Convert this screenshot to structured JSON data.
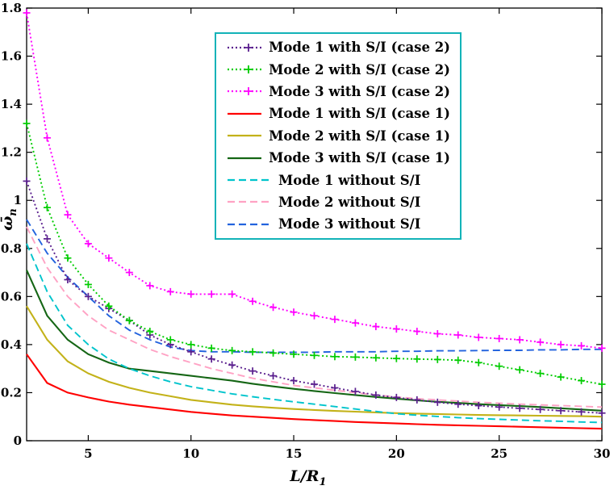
{
  "chart_data": {
    "type": "line",
    "title": "",
    "xlabel_main": "L/R",
    "xlabel_sub": "1",
    "ylabel_main": "ω̄",
    "ylabel_sub": "n",
    "xlim": [
      2,
      30
    ],
    "ylim": [
      0,
      1.8
    ],
    "grid": false,
    "x_ticks": [
      5,
      10,
      15,
      20,
      25,
      30
    ],
    "x_tick_labels": [
      "5",
      "10",
      "15",
      "20",
      "25",
      "30"
    ],
    "y_ticks": [
      0,
      0.2,
      0.4,
      0.6,
      0.8,
      1.0,
      1.2,
      1.4,
      1.6,
      1.8
    ],
    "y_tick_labels": [
      "0",
      "0.2",
      "0.4",
      "0.6",
      "0.8",
      "1",
      "1.2",
      "1.4",
      "1.6",
      "1.8"
    ],
    "x": [
      2,
      3,
      4,
      5,
      6,
      7,
      8,
      9,
      10,
      11,
      12,
      13,
      14,
      15,
      16,
      17,
      18,
      19,
      20,
      21,
      22,
      23,
      24,
      25,
      26,
      27,
      28,
      29,
      30
    ],
    "legend": {
      "position": "upper-center",
      "border_color": "#12b3b8"
    },
    "series": [
      {
        "name": "Mode 1 with S/I (case 2)",
        "color": "#5a1f8e",
        "line": "dotted",
        "marker": "plus",
        "values": [
          1.08,
          0.84,
          0.67,
          0.6,
          0.55,
          0.5,
          0.44,
          0.4,
          0.37,
          0.34,
          0.315,
          0.29,
          0.27,
          0.25,
          0.235,
          0.22,
          0.205,
          0.19,
          0.18,
          0.17,
          0.16,
          0.152,
          0.146,
          0.14,
          0.135,
          0.13,
          0.125,
          0.12,
          0.115
        ]
      },
      {
        "name": "Mode 2 with S/I (case 2)",
        "color": "#00cc00",
        "line": "dotted",
        "marker": "plus",
        "values": [
          1.32,
          0.97,
          0.76,
          0.65,
          0.56,
          0.5,
          0.455,
          0.42,
          0.4,
          0.385,
          0.375,
          0.37,
          0.365,
          0.36,
          0.355,
          0.35,
          0.348,
          0.345,
          0.342,
          0.34,
          0.338,
          0.335,
          0.325,
          0.31,
          0.295,
          0.28,
          0.265,
          0.25,
          0.235
        ]
      },
      {
        "name": "Mode 3 with S/I (case 2)",
        "color": "#ff00ff",
        "line": "dotted",
        "marker": "plus",
        "values": [
          1.78,
          1.26,
          0.94,
          0.82,
          0.76,
          0.7,
          0.645,
          0.62,
          0.61,
          0.61,
          0.61,
          0.58,
          0.555,
          0.535,
          0.52,
          0.505,
          0.49,
          0.475,
          0.465,
          0.455,
          0.445,
          0.44,
          0.43,
          0.425,
          0.42,
          0.41,
          0.4,
          0.395,
          0.385
        ]
      },
      {
        "name": "Mode 1 with S/I (case 1)",
        "color": "#ff0000",
        "line": "solid",
        "marker": "none",
        "values": [
          0.36,
          0.24,
          0.2,
          0.18,
          0.163,
          0.15,
          0.14,
          0.13,
          0.12,
          0.112,
          0.105,
          0.1,
          0.095,
          0.09,
          0.086,
          0.082,
          0.078,
          0.075,
          0.072,
          0.069,
          0.066,
          0.064,
          0.062,
          0.06,
          0.058,
          0.056,
          0.054,
          0.052,
          0.05
        ]
      },
      {
        "name": "Mode 2 with S/I (case 1)",
        "color": "#c3b219",
        "line": "solid",
        "marker": "none",
        "values": [
          0.56,
          0.42,
          0.33,
          0.28,
          0.245,
          0.22,
          0.2,
          0.185,
          0.17,
          0.16,
          0.15,
          0.143,
          0.137,
          0.132,
          0.128,
          0.124,
          0.121,
          0.118,
          0.115,
          0.113,
          0.111,
          0.109,
          0.107,
          0.106,
          0.105,
          0.104,
          0.103,
          0.102,
          0.1
        ]
      },
      {
        "name": "Mode 3 with S/I (case 1)",
        "color": "#156615",
        "line": "solid",
        "marker": "none",
        "values": [
          0.71,
          0.52,
          0.42,
          0.36,
          0.325,
          0.3,
          0.29,
          0.28,
          0.27,
          0.26,
          0.25,
          0.237,
          0.226,
          0.216,
          0.207,
          0.198,
          0.19,
          0.182,
          0.175,
          0.168,
          0.162,
          0.157,
          0.152,
          0.148,
          0.144,
          0.14,
          0.135,
          0.13,
          0.125
        ]
      },
      {
        "name": "Mode 1 without S/I",
        "color": "#00c4cc",
        "line": "dashed",
        "marker": "none",
        "values": [
          0.82,
          0.62,
          0.48,
          0.4,
          0.34,
          0.3,
          0.27,
          0.245,
          0.225,
          0.21,
          0.195,
          0.183,
          0.172,
          0.162,
          0.152,
          0.142,
          0.132,
          0.122,
          0.112,
          0.106,
          0.101,
          0.096,
          0.092,
          0.089,
          0.086,
          0.083,
          0.081,
          0.078,
          0.076
        ]
      },
      {
        "name": "Mode 2 without S/I",
        "color": "#ffa2c4",
        "line": "dashed",
        "marker": "none",
        "values": [
          0.89,
          0.72,
          0.6,
          0.52,
          0.46,
          0.42,
          0.38,
          0.35,
          0.325,
          0.3,
          0.28,
          0.26,
          0.245,
          0.23,
          0.22,
          0.21,
          0.2,
          0.19,
          0.182,
          0.175,
          0.17,
          0.165,
          0.16,
          0.156,
          0.152,
          0.149,
          0.146,
          0.143,
          0.14
        ]
      },
      {
        "name": "Mode 3 without S/I",
        "color": "#2363de",
        "line": "dashed",
        "marker": "none",
        "values": [
          0.92,
          0.78,
          0.68,
          0.6,
          0.52,
          0.46,
          0.42,
          0.39,
          0.375,
          0.37,
          0.37,
          0.368,
          0.368,
          0.368,
          0.368,
          0.37,
          0.37,
          0.37,
          0.372,
          0.372,
          0.374,
          0.374,
          0.375,
          0.376,
          0.376,
          0.378,
          0.378,
          0.38,
          0.38
        ]
      }
    ]
  }
}
